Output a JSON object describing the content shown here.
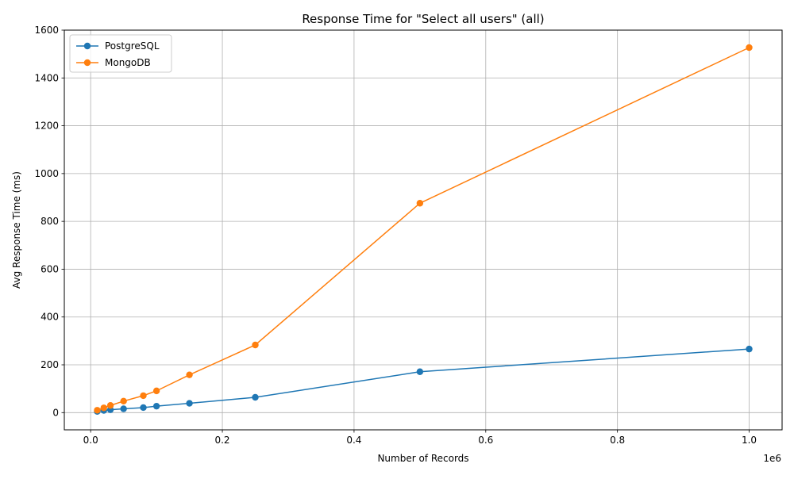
{
  "chart_data": {
    "type": "line",
    "title": "Response Time for \"Select all users\" (all)",
    "xlabel": "Number of Records",
    "ylabel": "Avg Response Time (ms)",
    "x_offset_label": "1e6",
    "xlim": [
      -40000,
      1050000
    ],
    "ylim": [
      -72,
      1600
    ],
    "x_ticks": [
      0,
      200000,
      400000,
      600000,
      800000,
      1000000
    ],
    "x_tick_labels": [
      "0.0",
      "0.2",
      "0.4",
      "0.6",
      "0.8",
      "1.0"
    ],
    "y_ticks": [
      0,
      200,
      400,
      600,
      800,
      1000,
      1200,
      1400,
      1600
    ],
    "y_tick_labels": [
      "0",
      "200",
      "400",
      "600",
      "800",
      "1000",
      "1200",
      "1400",
      "1600"
    ],
    "grid": true,
    "legend_position": "top-left",
    "x": [
      10000,
      20000,
      30000,
      50000,
      80000,
      100000,
      150000,
      250000,
      500000,
      1000000
    ],
    "series": [
      {
        "name": "PostgreSQL",
        "color": "#1f77b4",
        "values": [
          5,
          9,
          12,
          16,
          21,
          27,
          39,
          64,
          171,
          266
        ]
      },
      {
        "name": "MongoDB",
        "color": "#ff7f0e",
        "values": [
          10,
          20,
          30,
          48,
          71,
          91,
          158,
          283,
          876,
          1527
        ]
      }
    ]
  }
}
